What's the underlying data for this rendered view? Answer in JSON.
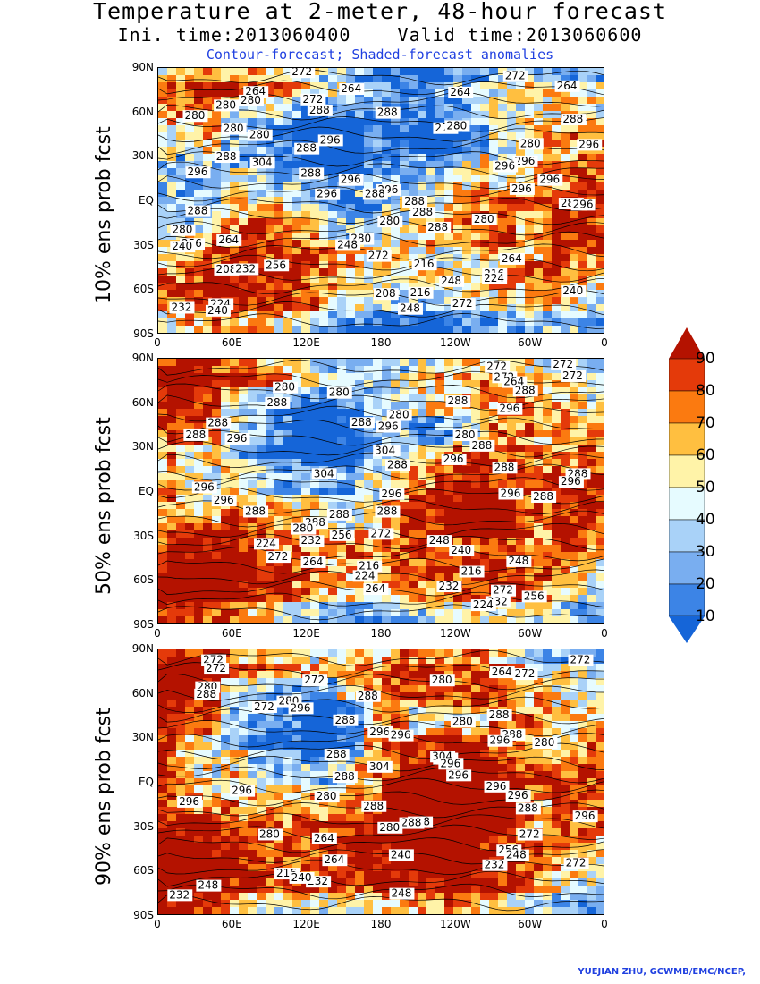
{
  "title_line1": "Temperature at 2-meter, 48-hour forecast",
  "title_line2": "Ini. time:2013060400    Valid time:2013060600",
  "subtitle": "Contour-forecast; Shaded-forecast anomalies",
  "credit": "YUEJIAN ZHU, GCWMB/EMC/NCEP,",
  "lat_ticks": [
    "90N",
    "60N",
    "30N",
    "EQ",
    "30S",
    "60S",
    "90S"
  ],
  "lon_ticks": [
    "0",
    "60E",
    "120E",
    "180",
    "120W",
    "60W",
    "0"
  ],
  "colorbar": {
    "levels": [
      "10",
      "20",
      "30",
      "40",
      "50",
      "60",
      "70",
      "80",
      "90"
    ],
    "colors": [
      "#1565d8",
      "#3c84e6",
      "#79aef0",
      "#a9d2f8",
      "#e6fbff",
      "#fff3a8",
      "#ffbf40",
      "#fb7a10",
      "#e43a0a",
      "#b41200"
    ]
  },
  "panels": [
    {
      "ylabel": "10% ens prob fcst",
      "contour_labels": [
        "272",
        "272",
        "264",
        "264",
        "264",
        "264",
        "280",
        "272",
        "280",
        "288",
        "288",
        "280",
        "288",
        "272",
        "280",
        "280",
        "280",
        "296",
        "296",
        "280",
        "288",
        "288",
        "296",
        "296",
        "304",
        "288",
        "296",
        "296",
        "296",
        "296",
        "296",
        "288",
        "296",
        "288",
        "288",
        "296",
        "288",
        "288",
        "280",
        "280",
        "288",
        "280",
        "280",
        "264",
        "256",
        "248",
        "240",
        "272",
        "264",
        "256",
        "216",
        "208",
        "232",
        "216",
        "224",
        "248",
        "240",
        "216",
        "208",
        "224",
        "232",
        "272",
        "248",
        "240"
      ]
    },
    {
      "ylabel": "50% ens prob fcst",
      "contour_labels": [
        "272",
        "272",
        "272",
        "272",
        "264",
        "280",
        "288",
        "280",
        "288",
        "288",
        "296",
        "280",
        "288",
        "288",
        "296",
        "288",
        "280",
        "296",
        "288",
        "296",
        "304",
        "296",
        "288",
        "288",
        "304",
        "288",
        "296",
        "296",
        "296",
        "296",
        "288",
        "296",
        "288",
        "288",
        "288",
        "288",
        "280",
        "272",
        "256",
        "248",
        "232",
        "224",
        "240",
        "272",
        "264",
        "248",
        "216",
        "216",
        "224",
        "232",
        "272",
        "264",
        "256",
        "232",
        "224"
      ]
    },
    {
      "ylabel": "90% ens prob fcst",
      "contour_labels": [
        "272",
        "272",
        "272",
        "272",
        "264",
        "280",
        "272",
        "280",
        "288",
        "288",
        "280",
        "296",
        "272",
        "288",
        "288",
        "280",
        "296",
        "288",
        "296",
        "296",
        "280",
        "288",
        "288",
        "304",
        "296",
        "304",
        "296",
        "288",
        "296",
        "296",
        "296",
        "280",
        "296",
        "288",
        "288",
        "296",
        "288",
        "288",
        "280",
        "272",
        "280",
        "264",
        "256",
        "240",
        "248",
        "272",
        "264",
        "232",
        "216",
        "232",
        "240",
        "248",
        "248",
        "232"
      ]
    }
  ]
}
